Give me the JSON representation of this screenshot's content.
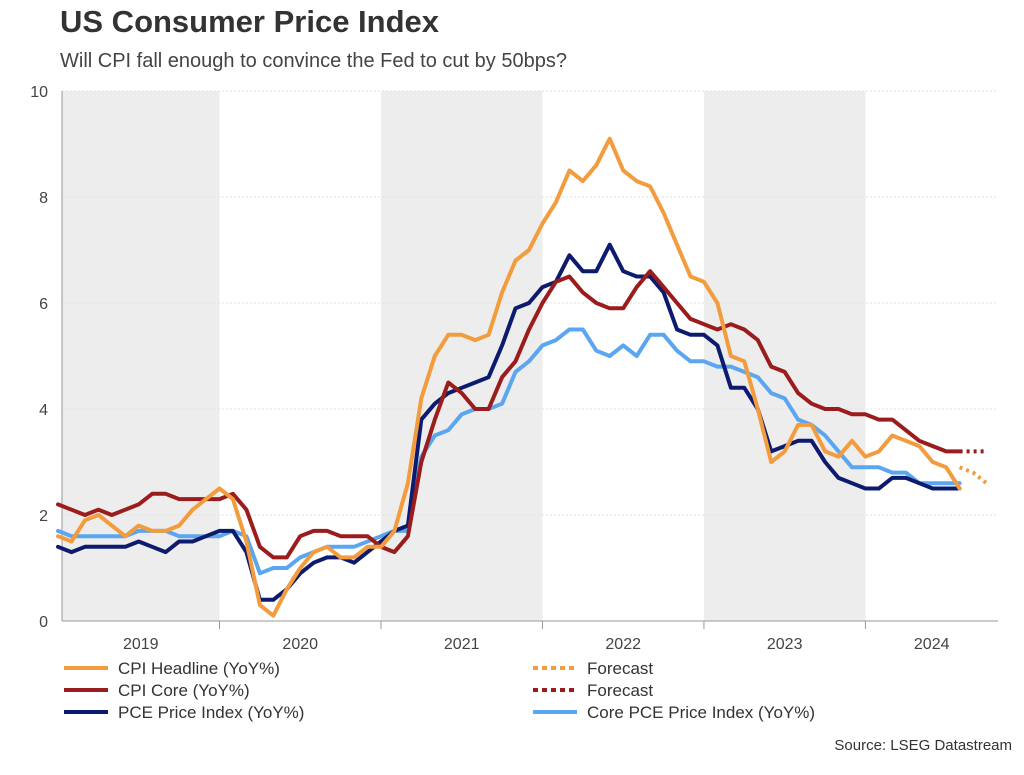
{
  "title": "US Consumer Price Index",
  "subtitle": "Will CPI fall enough to convince the Fed to cut by 50bps?",
  "source": "Source: LSEG Datastream",
  "chart_data": {
    "type": "line",
    "title": "US Consumer Price Index",
    "subtitle": "Will CPI fall enough to convince the Fed to cut by 50bps?",
    "xlabel": "",
    "ylabel": "",
    "ylim": [
      0,
      10
    ],
    "xlim": [
      "2019-01",
      "2024-10"
    ],
    "y_ticks": [
      0,
      2,
      4,
      6,
      8,
      10
    ],
    "x_tick_labels": [
      "2019",
      "2020",
      "2021",
      "2022",
      "2023",
      "2024"
    ],
    "grid": true,
    "legend_position": "bottom",
    "shaded_years": [
      "2019",
      "2021",
      "2023"
    ],
    "series": [
      {
        "name": "CPI Headline (YoY%)",
        "color": "#F39C3D",
        "style": "solid",
        "x": [
          "2019-01",
          "2019-02",
          "2019-03",
          "2019-04",
          "2019-05",
          "2019-06",
          "2019-07",
          "2019-08",
          "2019-09",
          "2019-10",
          "2019-11",
          "2019-12",
          "2020-01",
          "2020-02",
          "2020-03",
          "2020-04",
          "2020-05",
          "2020-06",
          "2020-07",
          "2020-08",
          "2020-09",
          "2020-10",
          "2020-11",
          "2020-12",
          "2021-01",
          "2021-02",
          "2021-03",
          "2021-04",
          "2021-05",
          "2021-06",
          "2021-07",
          "2021-08",
          "2021-09",
          "2021-10",
          "2021-11",
          "2021-12",
          "2022-01",
          "2022-02",
          "2022-03",
          "2022-04",
          "2022-05",
          "2022-06",
          "2022-07",
          "2022-08",
          "2022-09",
          "2022-10",
          "2022-11",
          "2022-12",
          "2023-01",
          "2023-02",
          "2023-03",
          "2023-04",
          "2023-05",
          "2023-06",
          "2023-07",
          "2023-08",
          "2023-09",
          "2023-10",
          "2023-11",
          "2023-12",
          "2024-01",
          "2024-02",
          "2024-03",
          "2024-04",
          "2024-05",
          "2024-06",
          "2024-07",
          "2024-08"
        ],
        "values": [
          1.6,
          1.5,
          1.9,
          2.0,
          1.8,
          1.6,
          1.8,
          1.7,
          1.7,
          1.8,
          2.1,
          2.3,
          2.5,
          2.3,
          1.5,
          0.3,
          0.1,
          0.6,
          1.0,
          1.3,
          1.4,
          1.2,
          1.2,
          1.4,
          1.4,
          1.7,
          2.6,
          4.2,
          5.0,
          5.4,
          5.4,
          5.3,
          5.4,
          6.2,
          6.8,
          7.0,
          7.5,
          7.9,
          8.5,
          8.3,
          8.6,
          9.1,
          8.5,
          8.3,
          8.2,
          7.7,
          7.1,
          6.5,
          6.4,
          6.0,
          5.0,
          4.9,
          4.0,
          3.0,
          3.2,
          3.7,
          3.7,
          3.2,
          3.1,
          3.4,
          3.1,
          3.2,
          3.5,
          3.4,
          3.3,
          3.0,
          2.9,
          2.5
        ]
      },
      {
        "name": "Forecast",
        "color": "#F39C3D",
        "style": "dotted",
        "x": [
          "2024-08",
          "2024-09",
          "2024-10"
        ],
        "values": [
          2.9,
          2.8,
          2.6
        ]
      },
      {
        "name": "CPI Core (YoY%)",
        "color": "#9B1C1C",
        "style": "solid",
        "x": [
          "2019-01",
          "2019-02",
          "2019-03",
          "2019-04",
          "2019-05",
          "2019-06",
          "2019-07",
          "2019-08",
          "2019-09",
          "2019-10",
          "2019-11",
          "2019-12",
          "2020-01",
          "2020-02",
          "2020-03",
          "2020-04",
          "2020-05",
          "2020-06",
          "2020-07",
          "2020-08",
          "2020-09",
          "2020-10",
          "2020-11",
          "2020-12",
          "2021-01",
          "2021-02",
          "2021-03",
          "2021-04",
          "2021-05",
          "2021-06",
          "2021-07",
          "2021-08",
          "2021-09",
          "2021-10",
          "2021-11",
          "2021-12",
          "2022-01",
          "2022-02",
          "2022-03",
          "2022-04",
          "2022-05",
          "2022-06",
          "2022-07",
          "2022-08",
          "2022-09",
          "2022-10",
          "2022-11",
          "2022-12",
          "2023-01",
          "2023-02",
          "2023-03",
          "2023-04",
          "2023-05",
          "2023-06",
          "2023-07",
          "2023-08",
          "2023-09",
          "2023-10",
          "2023-11",
          "2023-12",
          "2024-01",
          "2024-02",
          "2024-03",
          "2024-04",
          "2024-05",
          "2024-06",
          "2024-07",
          "2024-08"
        ],
        "values": [
          2.2,
          2.1,
          2.0,
          2.1,
          2.0,
          2.1,
          2.2,
          2.4,
          2.4,
          2.3,
          2.3,
          2.3,
          2.3,
          2.4,
          2.1,
          1.4,
          1.2,
          1.2,
          1.6,
          1.7,
          1.7,
          1.6,
          1.6,
          1.6,
          1.4,
          1.3,
          1.6,
          3.0,
          3.8,
          4.5,
          4.3,
          4.0,
          4.0,
          4.6,
          4.9,
          5.5,
          6.0,
          6.4,
          6.5,
          6.2,
          6.0,
          5.9,
          5.9,
          6.3,
          6.6,
          6.3,
          6.0,
          5.7,
          5.6,
          5.5,
          5.6,
          5.5,
          5.3,
          4.8,
          4.7,
          4.3,
          4.1,
          4.0,
          4.0,
          3.9,
          3.9,
          3.8,
          3.8,
          3.6,
          3.4,
          3.3,
          3.2,
          3.2
        ]
      },
      {
        "name": "Forecast",
        "color": "#9B1C1C",
        "style": "dotted",
        "x": [
          "2024-08",
          "2024-09",
          "2024-10"
        ],
        "values": [
          3.2,
          3.2,
          3.2
        ]
      },
      {
        "name": "PCE Price Index (YoY%)",
        "color": "#0D1B6E",
        "style": "solid",
        "x": [
          "2019-01",
          "2019-02",
          "2019-03",
          "2019-04",
          "2019-05",
          "2019-06",
          "2019-07",
          "2019-08",
          "2019-09",
          "2019-10",
          "2019-11",
          "2019-12",
          "2020-01",
          "2020-02",
          "2020-03",
          "2020-04",
          "2020-05",
          "2020-06",
          "2020-07",
          "2020-08",
          "2020-09",
          "2020-10",
          "2020-11",
          "2020-12",
          "2021-01",
          "2021-02",
          "2021-03",
          "2021-04",
          "2021-05",
          "2021-06",
          "2021-07",
          "2021-08",
          "2021-09",
          "2021-10",
          "2021-11",
          "2021-12",
          "2022-01",
          "2022-02",
          "2022-03",
          "2022-04",
          "2022-05",
          "2022-06",
          "2022-07",
          "2022-08",
          "2022-09",
          "2022-10",
          "2022-11",
          "2022-12",
          "2023-01",
          "2023-02",
          "2023-03",
          "2023-04",
          "2023-05",
          "2023-06",
          "2023-07",
          "2023-08",
          "2023-09",
          "2023-10",
          "2023-11",
          "2023-12",
          "2024-01",
          "2024-02",
          "2024-03",
          "2024-04",
          "2024-05",
          "2024-06",
          "2024-07",
          "2024-08"
        ],
        "values": [
          1.4,
          1.3,
          1.4,
          1.4,
          1.4,
          1.4,
          1.5,
          1.4,
          1.3,
          1.5,
          1.5,
          1.6,
          1.7,
          1.7,
          1.3,
          0.4,
          0.4,
          0.6,
          0.9,
          1.1,
          1.2,
          1.2,
          1.1,
          1.3,
          1.5,
          1.7,
          1.8,
          3.8,
          4.1,
          4.3,
          4.4,
          4.5,
          4.6,
          5.2,
          5.9,
          6.0,
          6.3,
          6.4,
          6.9,
          6.6,
          6.6,
          7.1,
          6.6,
          6.5,
          6.5,
          6.2,
          5.5,
          5.4,
          5.4,
          5.2,
          4.4,
          4.4,
          4.0,
          3.2,
          3.3,
          3.4,
          3.4,
          3.0,
          2.7,
          2.6,
          2.5,
          2.5,
          2.7,
          2.7,
          2.6,
          2.5,
          2.5,
          2.5
        ]
      },
      {
        "name": "Core PCE Price Index (YoY%)",
        "color": "#5AA6F0",
        "style": "solid",
        "x": [
          "2019-01",
          "2019-02",
          "2019-03",
          "2019-04",
          "2019-05",
          "2019-06",
          "2019-07",
          "2019-08",
          "2019-09",
          "2019-10",
          "2019-11",
          "2019-12",
          "2020-01",
          "2020-02",
          "2020-03",
          "2020-04",
          "2020-05",
          "2020-06",
          "2020-07",
          "2020-08",
          "2020-09",
          "2020-10",
          "2020-11",
          "2020-12",
          "2021-01",
          "2021-02",
          "2021-03",
          "2021-04",
          "2021-05",
          "2021-06",
          "2021-07",
          "2021-08",
          "2021-09",
          "2021-10",
          "2021-11",
          "2021-12",
          "2022-01",
          "2022-02",
          "2022-03",
          "2022-04",
          "2022-05",
          "2022-06",
          "2022-07",
          "2022-08",
          "2022-09",
          "2022-10",
          "2022-11",
          "2022-12",
          "2023-01",
          "2023-02",
          "2023-03",
          "2023-04",
          "2023-05",
          "2023-06",
          "2023-07",
          "2023-08",
          "2023-09",
          "2023-10",
          "2023-11",
          "2023-12",
          "2024-01",
          "2024-02",
          "2024-03",
          "2024-04",
          "2024-05",
          "2024-06",
          "2024-07",
          "2024-08"
        ],
        "values": [
          1.7,
          1.6,
          1.6,
          1.6,
          1.6,
          1.6,
          1.7,
          1.7,
          1.7,
          1.6,
          1.6,
          1.6,
          1.6,
          1.7,
          1.6,
          0.9,
          1.0,
          1.0,
          1.2,
          1.3,
          1.4,
          1.4,
          1.4,
          1.5,
          1.6,
          1.7,
          1.7,
          3.1,
          3.5,
          3.6,
          3.9,
          4.0,
          4.0,
          4.1,
          4.7,
          4.9,
          5.2,
          5.3,
          5.5,
          5.5,
          5.1,
          5.0,
          5.2,
          5.0,
          5.4,
          5.4,
          5.1,
          4.9,
          4.9,
          4.8,
          4.8,
          4.7,
          4.6,
          4.3,
          4.2,
          3.8,
          3.7,
          3.5,
          3.2,
          2.9,
          2.9,
          2.9,
          2.8,
          2.8,
          2.6,
          2.6,
          2.6,
          2.6
        ]
      }
    ]
  }
}
